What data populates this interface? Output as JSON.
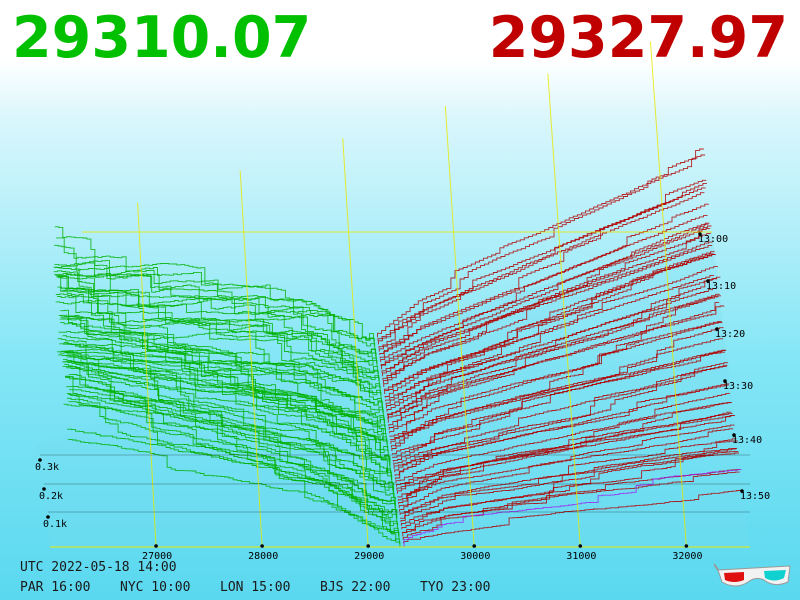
{
  "header": {
    "bid": "29310.07",
    "ask": "29327.97"
  },
  "info": {
    "utc": "UTC 2022-05-18 14:00",
    "cities": [
      "PAR 16:00",
      "NYC 10:00",
      "LON 15:00",
      "BJS 22:00",
      "TYO 23:00"
    ]
  },
  "chart_data": {
    "type": "area",
    "x_axis": {
      "ticks": [
        27000,
        28000,
        29000,
        30000,
        31000,
        32000
      ]
    },
    "depth_axis": {
      "ticks": [
        "0.1k",
        "0.2k",
        "0.3k"
      ]
    },
    "time_axis": {
      "ticks": [
        "13:00",
        "13:10",
        "13:20",
        "13:30",
        "13:40",
        "13:50"
      ]
    },
    "mid_price": 29319,
    "series": [
      {
        "side": "bid",
        "color": "#00b000"
      },
      {
        "side": "ask",
        "color": "#b00000"
      }
    ]
  },
  "icons": {
    "glasses": "3d-glasses-icon"
  },
  "colors": {
    "bid": "#00c000",
    "ask": "#c00000",
    "grid": "#e8e800",
    "latest": "#a020f0"
  }
}
